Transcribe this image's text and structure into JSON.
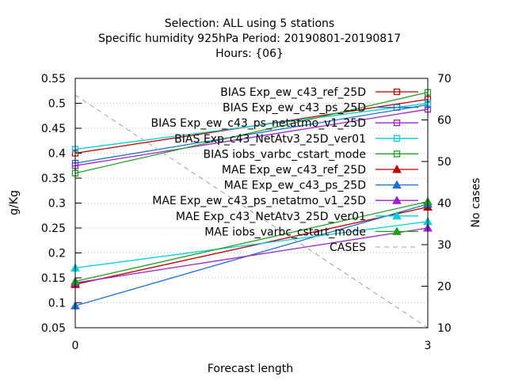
{
  "chart_data": {
    "type": "line",
    "title_lines": [
      "Selection: ALL using     5 stations",
      "Specific humidity 925hPa   Period: 20190801-20190817",
      "Hours: {06}"
    ],
    "xlabel": "Forecast length",
    "ylabel": "g/Kg",
    "y2label": "No cases",
    "x": [
      0,
      3
    ],
    "x_ticks": [
      "0",
      "3"
    ],
    "xlim": [
      0,
      3
    ],
    "ylim": [
      0.05,
      0.55
    ],
    "y_ticks": [
      "0.05",
      "0.1",
      "0.15",
      "0.2",
      "0.25",
      "0.3",
      "0.35",
      "0.4",
      "0.45",
      "0.5",
      "0.55"
    ],
    "y2lim": [
      10,
      70
    ],
    "y2_ticks": [
      "10",
      "20",
      "30",
      "40",
      "50",
      "60",
      "70"
    ],
    "grid": true,
    "legend_position": "top-right",
    "series": [
      {
        "name": "BIAS Exp_ew_c43_ref_25D",
        "values": [
          0.4,
          0.508
        ],
        "color": "#c00000",
        "marker": "square-open",
        "axis": "y"
      },
      {
        "name": "BIAS Exp_ew_c43_ps_25D",
        "values": [
          0.38,
          0.497
        ],
        "color": "#1f6fd1",
        "marker": "square-open",
        "axis": "y"
      },
      {
        "name": "BIAS Exp_ew_c43_ps_netatmo_v1_25D",
        "values": [
          0.375,
          0.488
        ],
        "color": "#a020d0",
        "marker": "square-open",
        "axis": "y"
      },
      {
        "name": "BIAS Exp_c43_NetAtv3_25D_ver01",
        "values": [
          0.408,
          0.5
        ],
        "color": "#00d0d8",
        "marker": "square-open",
        "axis": "y"
      },
      {
        "name": "BIAS iobs_varbc_cstart_mode",
        "values": [
          0.36,
          0.522
        ],
        "color": "#20a020",
        "marker": "square-open",
        "axis": "y"
      },
      {
        "name": "MAE Exp_ew_c43_ref_25D",
        "values": [
          0.137,
          0.292
        ],
        "color": "#c00000",
        "marker": "triangle-filled",
        "axis": "y"
      },
      {
        "name": "MAE Exp_ew_c43_ps_25D",
        "values": [
          0.094,
          0.298
        ],
        "color": "#1f6fd1",
        "marker": "triangle-filled",
        "axis": "y"
      },
      {
        "name": "MAE Exp_ew_c43_ps_netatmo_v1_25D",
        "values": [
          0.14,
          0.25
        ],
        "color": "#a020d0",
        "marker": "triangle-filled",
        "axis": "y"
      },
      {
        "name": "MAE Exp_c43_NetAtv3_25D_ver01",
        "values": [
          0.17,
          0.263
        ],
        "color": "#00d0d8",
        "marker": "triangle-filled",
        "axis": "y"
      },
      {
        "name": "MAE iobs_varbc_cstart_mode",
        "values": [
          0.143,
          0.303
        ],
        "color": "#20a020",
        "marker": "triangle-filled",
        "axis": "y"
      },
      {
        "name": "CASES",
        "values": [
          66,
          10
        ],
        "color": "#a0a0a0",
        "marker": "none",
        "dashed": true,
        "axis": "y2"
      }
    ]
  }
}
